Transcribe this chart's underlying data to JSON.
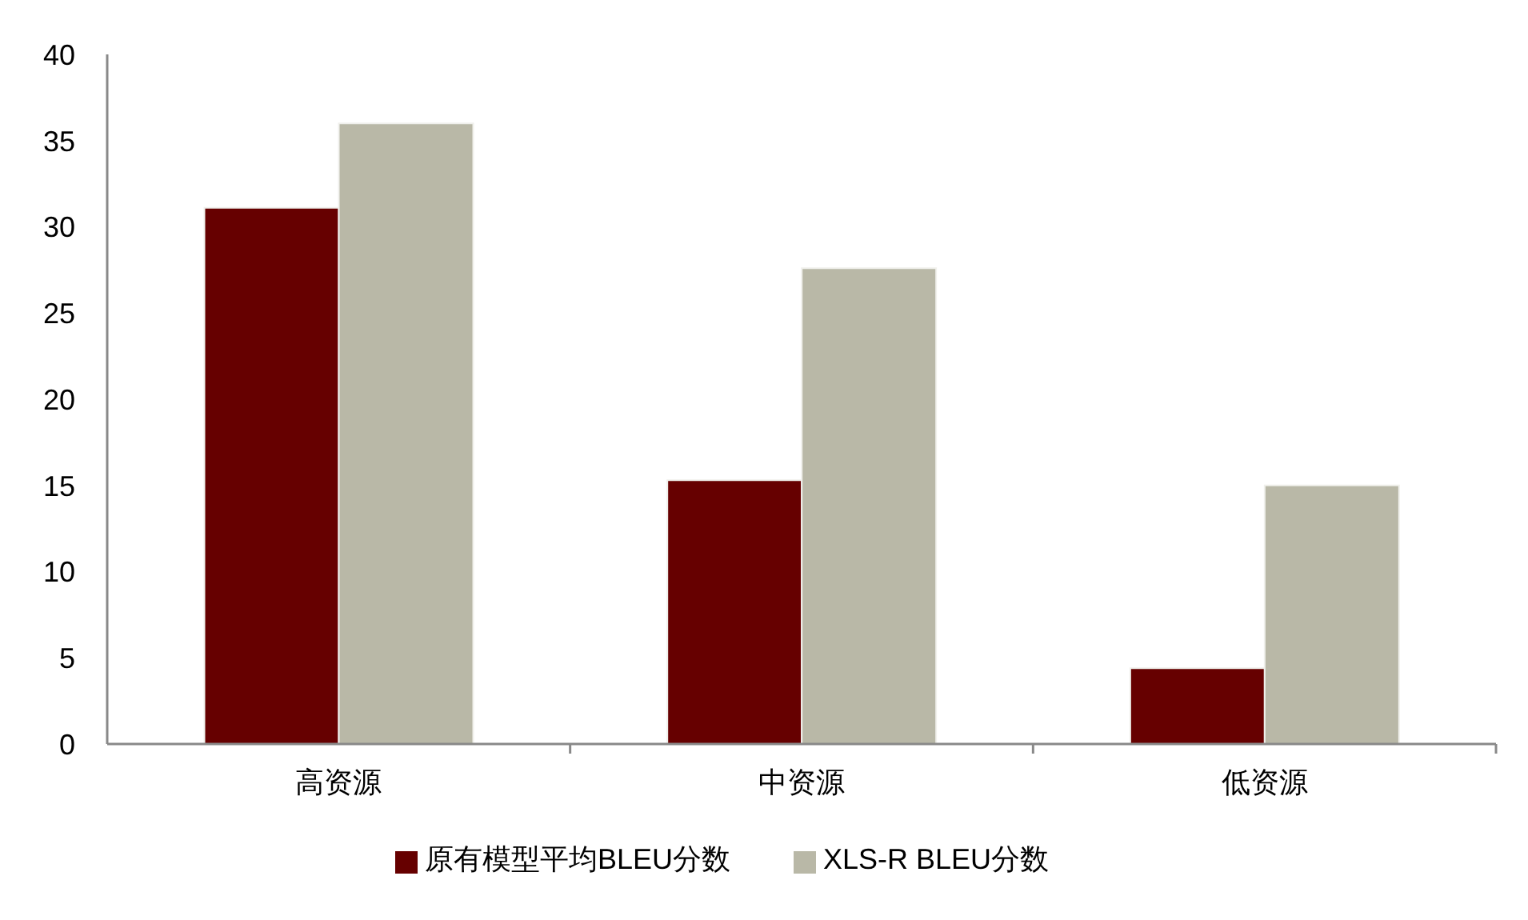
{
  "chart_data": {
    "type": "bar",
    "categories": [
      "高资源",
      "中资源",
      "低资源"
    ],
    "series": [
      {
        "name": "原有模型平均BLEU分数",
        "color": "#660000",
        "values": [
          31.1,
          15.3,
          4.4
        ]
      },
      {
        "name": "XLS-R BLEU分数",
        "color": "#b9b8a7",
        "values": [
          36.0,
          27.6,
          15.0
        ]
      }
    ],
    "ylim": [
      0,
      40
    ],
    "yticks": [
      0,
      5,
      10,
      15,
      20,
      25,
      30,
      35,
      40
    ],
    "grid": false,
    "legend": "bottom"
  }
}
